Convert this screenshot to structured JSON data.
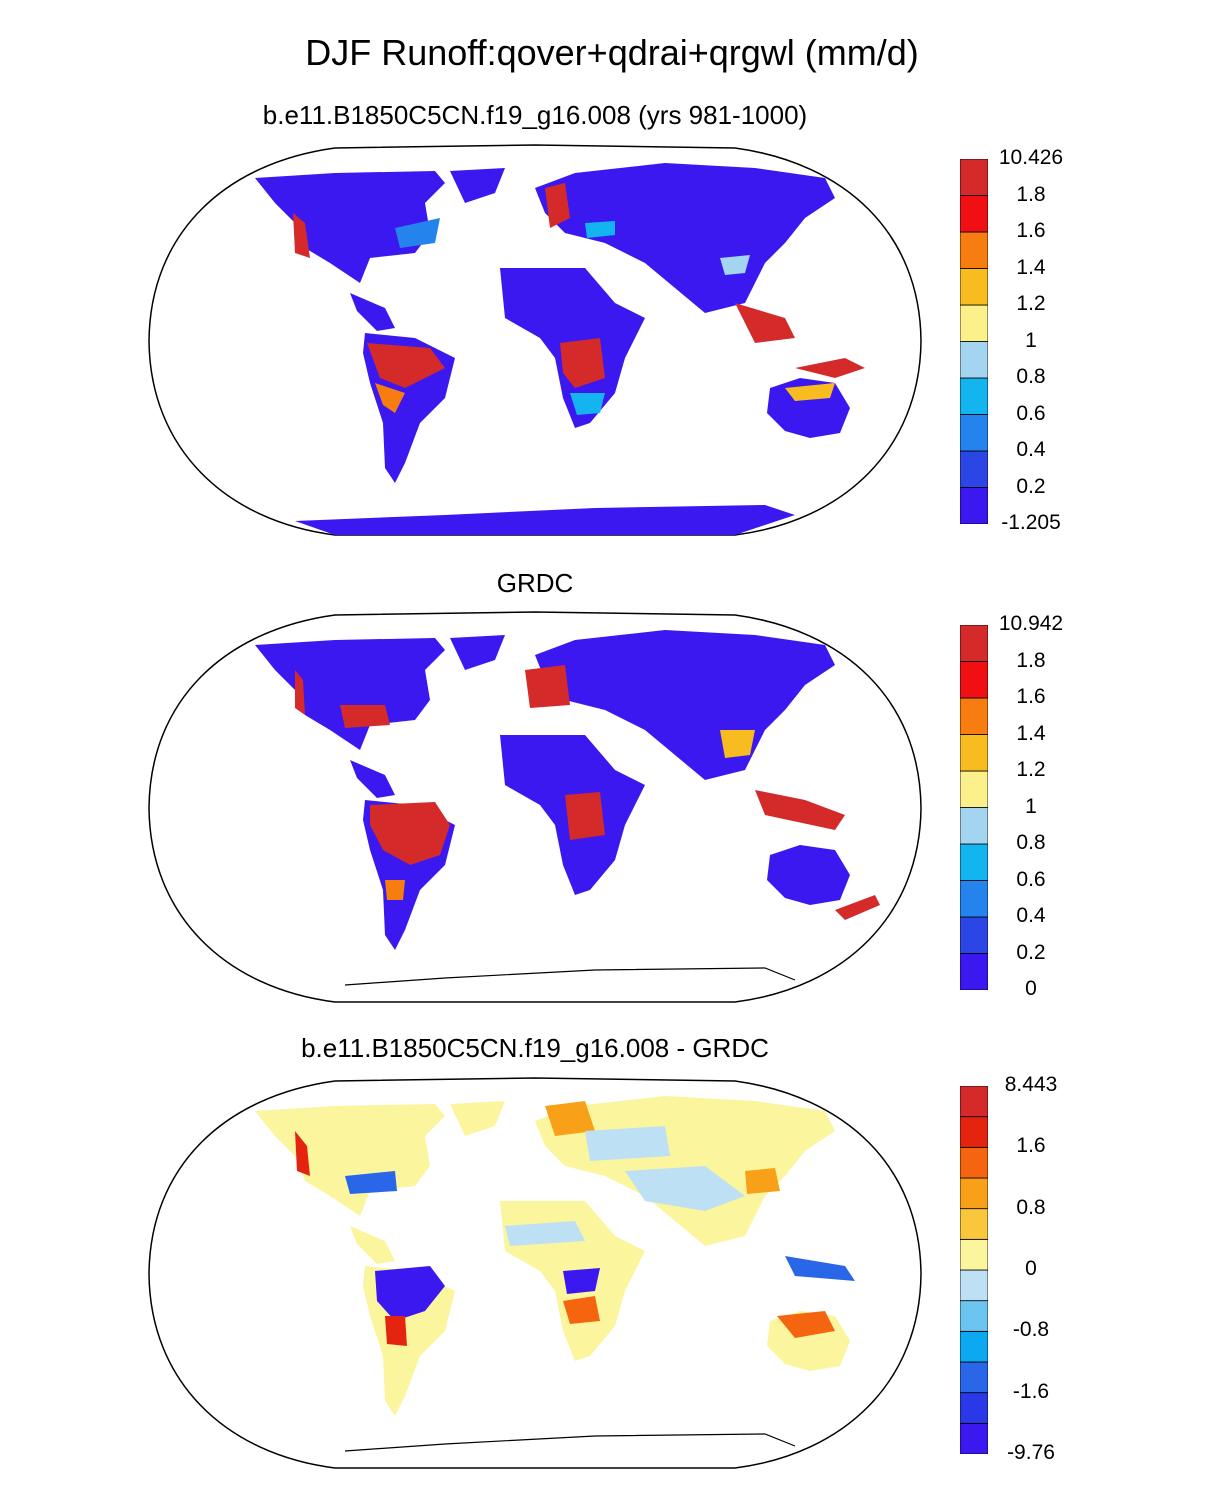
{
  "title": "DJF Runoff:qover+qdrai+qrgwl (mm/d)",
  "panels": [
    {
      "subtitle": "b.e11.B1850C5CN.f19_g16.008 (yrs 981-1000)",
      "colorbar": {
        "colors": [
          "#3b18f0",
          "#2c46e6",
          "#2583ee",
          "#14b4f0",
          "#a3d4f0",
          "#fbf08a",
          "#f8bc20",
          "#f77d10",
          "#f00f12",
          "#d42a2a"
        ],
        "labels": [
          "-1.205",
          "0.2",
          "0.4",
          "0.6",
          "0.8",
          "1",
          "1.2",
          "1.4",
          "1.6",
          "1.8",
          "10.426"
        ]
      }
    },
    {
      "subtitle": "GRDC",
      "colorbar": {
        "colors": [
          "#3b18f0",
          "#2c46e6",
          "#2583ee",
          "#14b4f0",
          "#a3d4f0",
          "#fbf08a",
          "#f8bc20",
          "#f77d10",
          "#f00f12",
          "#d42a2a"
        ],
        "labels": [
          "0",
          "0.2",
          "0.4",
          "0.6",
          "0.8",
          "1",
          "1.2",
          "1.4",
          "1.6",
          "1.8",
          "10.942"
        ]
      }
    },
    {
      "subtitle": "b.e11.B1850C5CN.f19_g16.008 - GRDC",
      "colorbar": {
        "colors": [
          "#3b18f0",
          "#2a38e8",
          "#2a66e8",
          "#0ca8f0",
          "#6cc4f0",
          "#bde0f5",
          "#fbf59e",
          "#fac63b",
          "#f7a018",
          "#f5640f",
          "#e4240f",
          "#d42a2a"
        ],
        "labels": [
          "-9.76",
          "",
          "-1.6",
          "",
          "-0.8",
          "",
          "0",
          "",
          "0.8",
          "",
          "1.6",
          "",
          "8.443"
        ]
      }
    }
  ]
}
